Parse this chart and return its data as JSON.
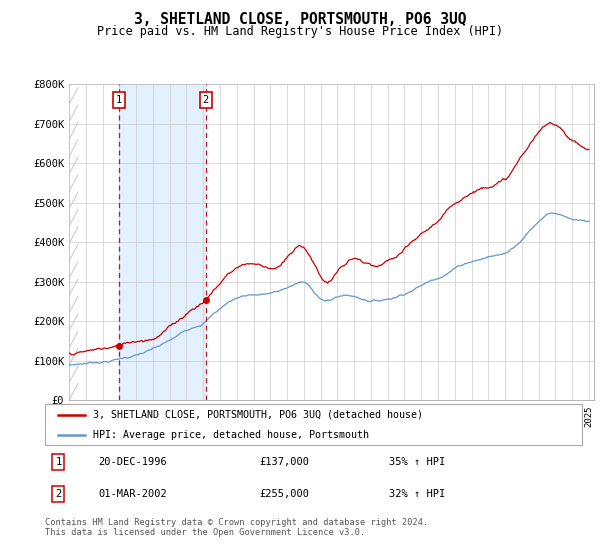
{
  "title": "3, SHETLAND CLOSE, PORTSMOUTH, PO6 3UQ",
  "subtitle": "Price paid vs. HM Land Registry's House Price Index (HPI)",
  "legend_line1": "3, SHETLAND CLOSE, PORTSMOUTH, PO6 3UQ (detached house)",
  "legend_line2": "HPI: Average price, detached house, Portsmouth",
  "footer": "Contains HM Land Registry data © Crown copyright and database right 2024.\nThis data is licensed under the Open Government Licence v3.0.",
  "red_color": "#cc0000",
  "blue_color": "#6699cc",
  "shaded_bg": "#ddeeff",
  "grid_color": "#cccccc",
  "ylim": [
    0,
    800000
  ],
  "yticks": [
    0,
    100000,
    200000,
    300000,
    400000,
    500000,
    600000,
    700000,
    800000
  ],
  "ytick_labels": [
    "£0",
    "£100K",
    "£200K",
    "£300K",
    "£400K",
    "£500K",
    "£600K",
    "£700K",
    "£800K"
  ],
  "sale1_year": 1996.97,
  "sale2_year": 2002.16,
  "sale1_price": 137000,
  "sale2_price": 255000,
  "hpi_points": [
    [
      1994.0,
      88000
    ],
    [
      1994.5,
      91000
    ],
    [
      1995.0,
      94000
    ],
    [
      1995.5,
      97000
    ],
    [
      1996.0,
      100000
    ],
    [
      1996.5,
      103000
    ],
    [
      1997.0,
      108000
    ],
    [
      1997.5,
      113000
    ],
    [
      1998.0,
      118000
    ],
    [
      1998.5,
      124000
    ],
    [
      1999.0,
      131000
    ],
    [
      1999.5,
      140000
    ],
    [
      2000.0,
      150000
    ],
    [
      2000.5,
      162000
    ],
    [
      2001.0,
      175000
    ],
    [
      2001.5,
      188000
    ],
    [
      2002.0,
      200000
    ],
    [
      2002.5,
      218000
    ],
    [
      2003.0,
      236000
    ],
    [
      2003.5,
      252000
    ],
    [
      2004.0,
      263000
    ],
    [
      2004.5,
      271000
    ],
    [
      2005.0,
      274000
    ],
    [
      2005.5,
      275000
    ],
    [
      2006.0,
      278000
    ],
    [
      2006.5,
      282000
    ],
    [
      2007.0,
      291000
    ],
    [
      2007.5,
      300000
    ],
    [
      2008.0,
      303000
    ],
    [
      2008.5,
      285000
    ],
    [
      2009.0,
      265000
    ],
    [
      2009.5,
      258000
    ],
    [
      2010.0,
      268000
    ],
    [
      2010.5,
      272000
    ],
    [
      2011.0,
      270000
    ],
    [
      2011.5,
      265000
    ],
    [
      2012.0,
      262000
    ],
    [
      2012.5,
      263000
    ],
    [
      2013.0,
      268000
    ],
    [
      2013.5,
      275000
    ],
    [
      2014.0,
      285000
    ],
    [
      2014.5,
      296000
    ],
    [
      2015.0,
      307000
    ],
    [
      2015.5,
      318000
    ],
    [
      2016.0,
      330000
    ],
    [
      2016.5,
      342000
    ],
    [
      2017.0,
      356000
    ],
    [
      2017.5,
      367000
    ],
    [
      2018.0,
      376000
    ],
    [
      2018.5,
      382000
    ],
    [
      2019.0,
      388000
    ],
    [
      2019.5,
      393000
    ],
    [
      2020.0,
      398000
    ],
    [
      2020.5,
      415000
    ],
    [
      2021.0,
      438000
    ],
    [
      2021.5,
      462000
    ],
    [
      2022.0,
      485000
    ],
    [
      2022.5,
      505000
    ],
    [
      2023.0,
      510000
    ],
    [
      2023.5,
      500000
    ],
    [
      2024.0,
      490000
    ],
    [
      2024.5,
      483000
    ],
    [
      2025.0,
      478000
    ]
  ],
  "red_points": [
    [
      1994.0,
      120000
    ],
    [
      1994.5,
      122000
    ],
    [
      1995.0,
      124000
    ],
    [
      1995.5,
      127000
    ],
    [
      1996.0,
      130000
    ],
    [
      1996.5,
      133000
    ],
    [
      1997.0,
      137000
    ],
    [
      1997.5,
      145000
    ],
    [
      1998.0,
      152000
    ],
    [
      1998.5,
      158000
    ],
    [
      1999.0,
      165000
    ],
    [
      1999.5,
      178000
    ],
    [
      2000.0,
      193000
    ],
    [
      2000.5,
      210000
    ],
    [
      2001.0,
      230000
    ],
    [
      2001.5,
      248000
    ],
    [
      2002.0,
      262000
    ],
    [
      2002.5,
      285000
    ],
    [
      2003.0,
      310000
    ],
    [
      2003.5,
      335000
    ],
    [
      2004.0,
      352000
    ],
    [
      2004.5,
      362000
    ],
    [
      2005.0,
      365000
    ],
    [
      2005.5,
      360000
    ],
    [
      2006.0,
      358000
    ],
    [
      2006.5,
      362000
    ],
    [
      2007.0,
      380000
    ],
    [
      2007.5,
      400000
    ],
    [
      2008.0,
      405000
    ],
    [
      2008.5,
      375000
    ],
    [
      2009.0,
      335000
    ],
    [
      2009.5,
      322000
    ],
    [
      2010.0,
      348000
    ],
    [
      2010.5,
      365000
    ],
    [
      2011.0,
      378000
    ],
    [
      2011.5,
      368000
    ],
    [
      2012.0,
      355000
    ],
    [
      2012.5,
      350000
    ],
    [
      2013.0,
      358000
    ],
    [
      2013.5,
      368000
    ],
    [
      2014.0,
      382000
    ],
    [
      2014.5,
      398000
    ],
    [
      2015.0,
      415000
    ],
    [
      2015.5,
      432000
    ],
    [
      2016.0,
      450000
    ],
    [
      2016.5,
      468000
    ],
    [
      2017.0,
      490000
    ],
    [
      2017.5,
      510000
    ],
    [
      2018.0,
      525000
    ],
    [
      2018.5,
      535000
    ],
    [
      2019.0,
      548000
    ],
    [
      2019.5,
      558000
    ],
    [
      2020.0,
      565000
    ],
    [
      2020.5,
      590000
    ],
    [
      2021.0,
      622000
    ],
    [
      2021.5,
      652000
    ],
    [
      2022.0,
      678000
    ],
    [
      2022.5,
      695000
    ],
    [
      2023.0,
      700000
    ],
    [
      2023.5,
      685000
    ],
    [
      2024.0,
      665000
    ],
    [
      2024.5,
      650000
    ],
    [
      2025.0,
      640000
    ]
  ]
}
